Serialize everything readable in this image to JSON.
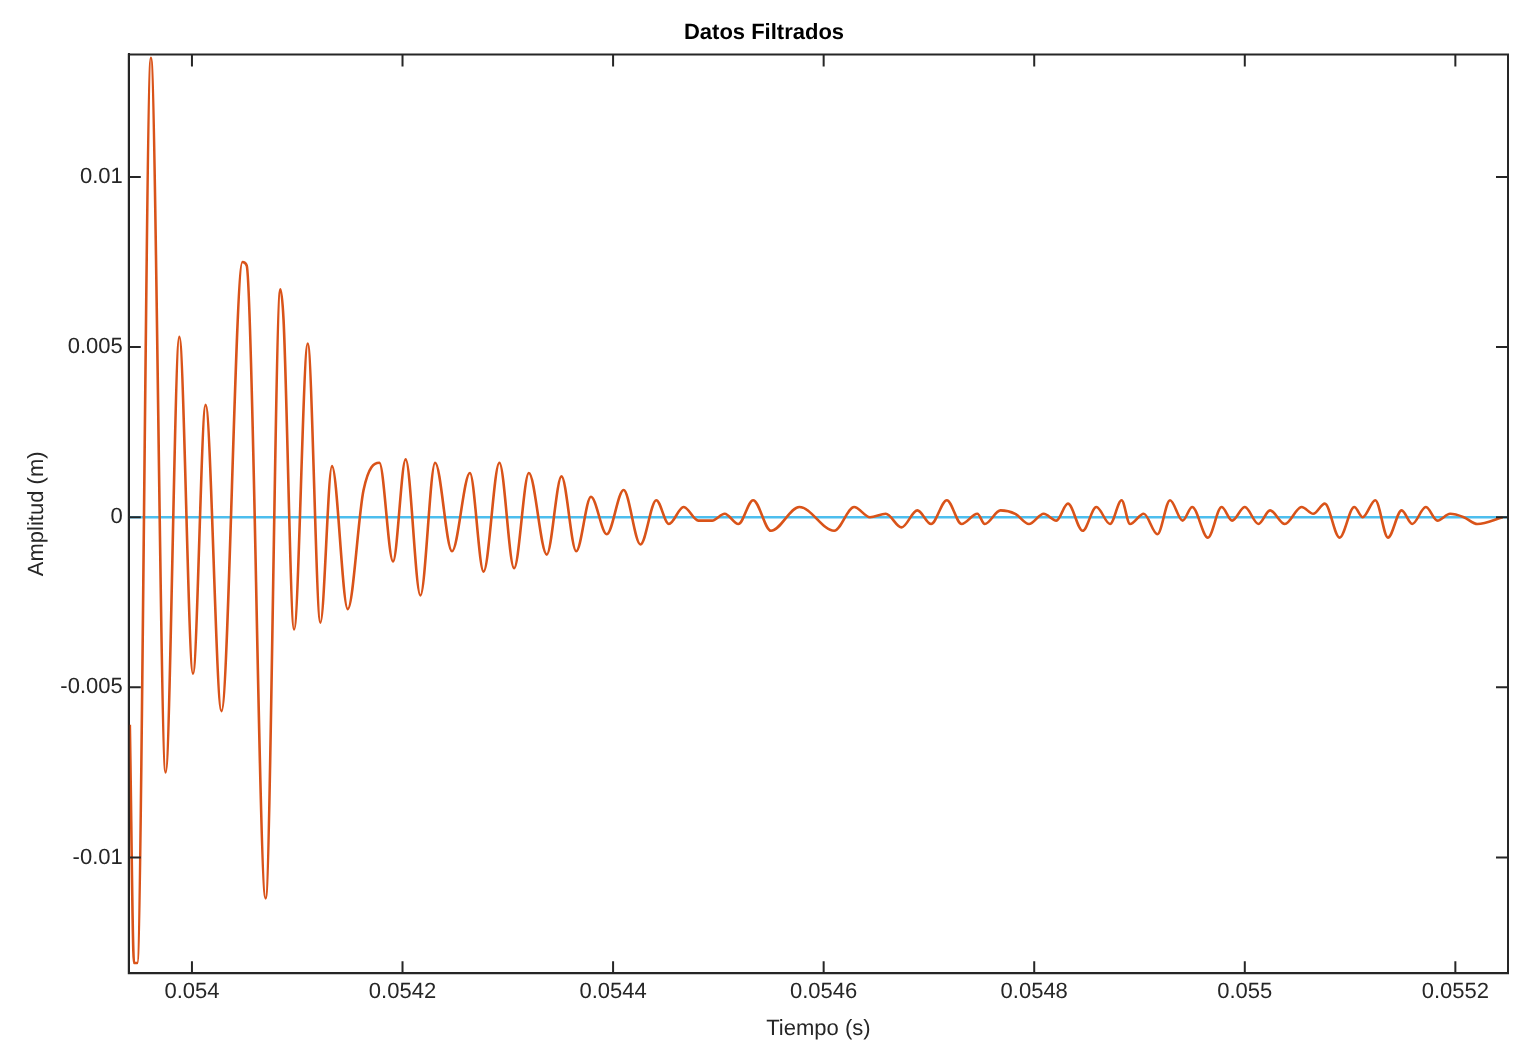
{
  "chart_data": {
    "type": "line",
    "title": "Datos Filtrados",
    "xlabel": "Tiempo (s)",
    "ylabel": "Amplitud (m)",
    "xlim": [
      0.05394,
      0.05525
    ],
    "xticks": [
      0.054,
      0.0542,
      0.0544,
      0.0546,
      0.0548,
      0.055,
      0.0552
    ],
    "ylim": [
      -0.0134,
      0.0136
    ],
    "yticks": [
      -0.01,
      -0.005,
      0,
      0.005,
      0.01
    ],
    "grid": false,
    "legend": false,
    "marker": "none",
    "line_style": "solid",
    "series": [
      {
        "color": "#d95319",
        "x": [
          0.053941,
          0.053945,
          0.053948,
          0.053961,
          0.053975,
          0.053988,
          0.054001,
          0.054013,
          0.054028,
          0.054048,
          0.054052,
          0.05407,
          0.054084,
          0.054087,
          0.054097,
          0.05411,
          0.054122,
          0.054133,
          0.054148,
          0.054163,
          0.054178,
          0.054191,
          0.054203,
          0.054217,
          0.054231,
          0.054247,
          0.054264,
          0.054277,
          0.054292,
          0.054306,
          0.05432,
          0.054337,
          0.054351,
          0.054365,
          0.054379,
          0.054394,
          0.05441,
          0.054426,
          0.054441,
          0.054453,
          0.054467,
          0.054481,
          0.054494,
          0.054506,
          0.054519,
          0.054533,
          0.05455,
          0.054577,
          0.05461,
          0.054629,
          0.054644,
          0.054659,
          0.054674,
          0.054689,
          0.054702,
          0.054717,
          0.054731,
          0.054746,
          0.054753,
          0.054768,
          0.054782,
          0.054795,
          0.054809,
          0.054821,
          0.054832,
          0.054846,
          0.054859,
          0.054872,
          0.054883,
          0.054891,
          0.054904,
          0.054917,
          0.054929,
          0.054941,
          0.05495,
          0.054965,
          0.054978,
          0.054988,
          0.055,
          0.055013,
          0.055024,
          0.055038,
          0.055054,
          0.055065,
          0.055076,
          0.05509,
          0.055104,
          0.055112,
          0.055124,
          0.055136,
          0.055149,
          0.055159,
          0.055172,
          0.055183,
          0.055195,
          0.055208,
          0.055221,
          0.055245
        ],
        "values": [
          -0.0061,
          -0.0131,
          -0.0131,
          0.0135,
          -0.0075,
          0.0053,
          -0.0046,
          0.0033,
          -0.0057,
          0.0075,
          0.0074,
          -0.0112,
          0.0067,
          0.0058,
          -0.0033,
          0.0051,
          -0.0031,
          0.0015,
          -0.0027,
          0.0008,
          0.0016,
          -0.0013,
          0.0017,
          -0.0023,
          0.0016,
          -0.001,
          0.0013,
          -0.0016,
          0.0016,
          -0.0015,
          0.0013,
          -0.0011,
          0.0012,
          -0.001,
          0.0006,
          -0.0005,
          0.0008,
          -0.0008,
          0.0005,
          -0.0002,
          0.0003,
          -0.0001,
          -0.0001,
          0.0001,
          -0.0002,
          0.0005,
          -0.0004,
          0.0003,
          -0.0004,
          0.0003,
          0,
          0.0001,
          -0.0003,
          0.0002,
          -0.0002,
          0.0005,
          -0.0002,
          0.0001,
          -0.0002,
          0.0002,
          0.0001,
          -0.0002,
          0.0001,
          -0.0001,
          0.0004,
          -0.0004,
          0.0003,
          -0.0002,
          0.0005,
          -0.0002,
          0.0001,
          -0.0005,
          0.0005,
          -0.0001,
          0.0003,
          -0.0006,
          0.0003,
          -0.0001,
          0.0003,
          -0.0002,
          0.0002,
          -0.0002,
          0.0003,
          0.0001,
          0.0004,
          -0.0006,
          0.0003,
          0,
          0.0005,
          -0.0006,
          0.0002,
          -0.0002,
          0.0003,
          -0.0001,
          0.0001,
          0,
          -0.0002,
          0
        ]
      },
      {
        "color": "#4dbeee",
        "x": [
          0.05394,
          0.05525
        ],
        "values": [
          0,
          0
        ]
      }
    ]
  }
}
